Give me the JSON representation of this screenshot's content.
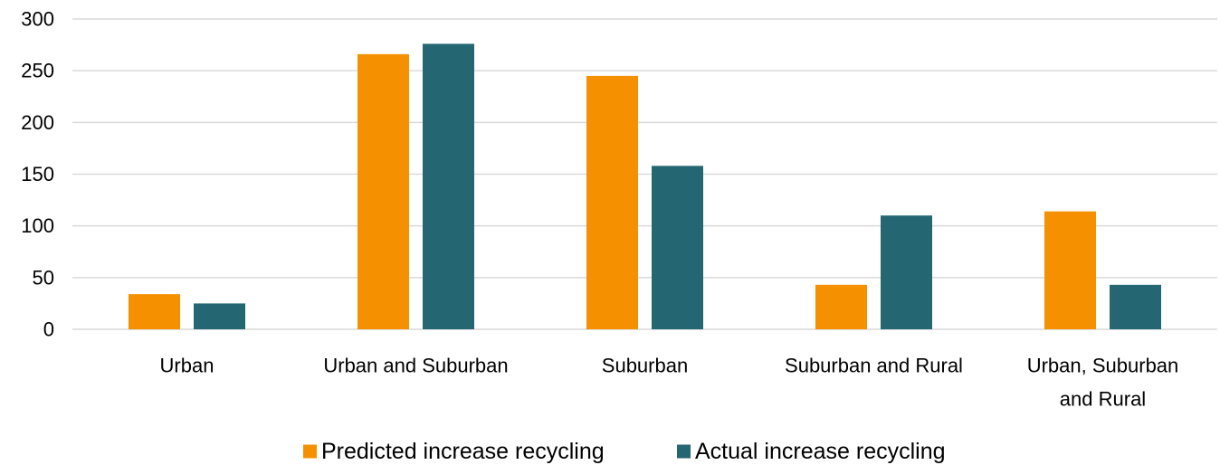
{
  "chart_data": {
    "type": "bar",
    "title": "",
    "xlabel": "",
    "ylabel": "",
    "categories": [
      [
        "Urban"
      ],
      [
        "Urban and Suburban"
      ],
      [
        "Suburban"
      ],
      [
        "Suburban and Rural"
      ],
      [
        "Urban, Suburban",
        "and Rural"
      ]
    ],
    "series": [
      {
        "name": "Predicted increase recycling",
        "color": "#F59100",
        "values": [
          34,
          266,
          245,
          43,
          114
        ]
      },
      {
        "name": "Actual increase recycling",
        "color": "#246672",
        "values": [
          25,
          276,
          158,
          110,
          43
        ]
      }
    ],
    "ylim": [
      0,
      300
    ],
    "yticks": [
      0,
      50,
      100,
      150,
      200,
      250,
      300
    ],
    "grid": true,
    "grid_color": "#D9D9D9",
    "legend_position": "bottom"
  }
}
